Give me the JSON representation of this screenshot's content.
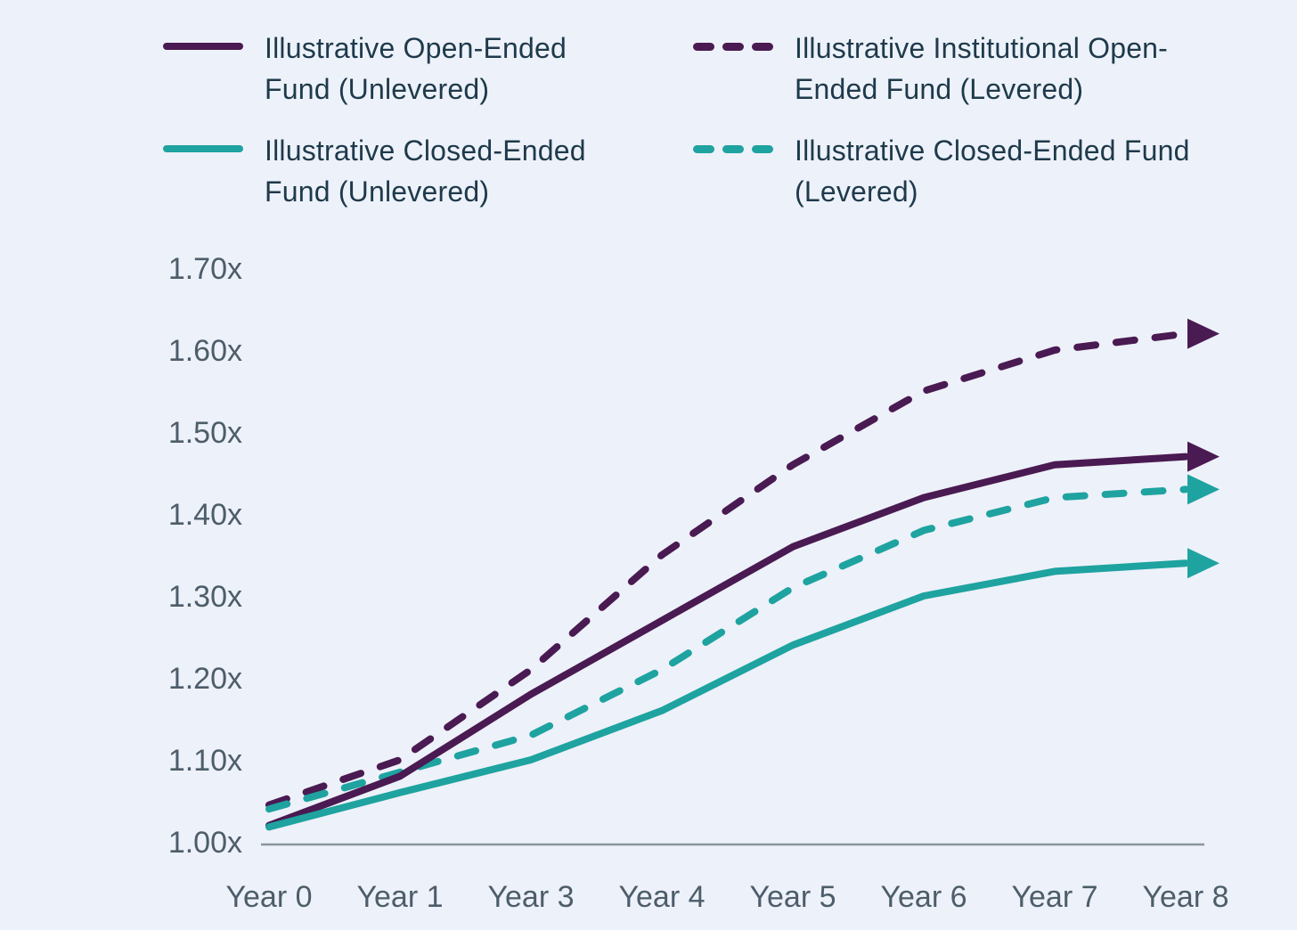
{
  "page": {
    "background_color": "#EDF1F9",
    "text_color": "#1E3A4B",
    "axis_text_color": "#4D5D6A",
    "axis_line_color": "#8B959F"
  },
  "legend": {
    "items": [
      {
        "label": "Illustrative Open-Ended Fund (Unlevered)",
        "color": "#4A1A52",
        "style": "solid"
      },
      {
        "label": "Illustrative Institutional Open-Ended Fund (Levered)",
        "color": "#4A1A52",
        "style": "dashed"
      },
      {
        "label": "Illustrative Closed-Ended Fund (Unlevered)",
        "color": "#1EA3A0",
        "style": "solid"
      },
      {
        "label": "Illustrative Closed-Ended Fund (Levered)",
        "color": "#1EA3A0",
        "style": "dashed"
      }
    ]
  },
  "chart_data": {
    "type": "line",
    "title": "",
    "xlabel": "",
    "ylabel": "",
    "x_labels": [
      "Year 0",
      "Year 1",
      "Year 3",
      "Year 4",
      "Year 5",
      "Year 6",
      "Year 7",
      "Year 8"
    ],
    "y_ticks": [
      "1.00x",
      "1.10x",
      "1.20x",
      "1.30x",
      "1.40x",
      "1.50x",
      "1.60x",
      "1.70x"
    ],
    "ylim": [
      1.0,
      1.7
    ],
    "grid": false,
    "legend_position": "top",
    "arrow_end": true,
    "series": [
      {
        "name": "Illustrative Institutional Open-Ended Fund (Levered)",
        "style": "dashed",
        "color": "#4A1A52",
        "values": [
          1.045,
          1.1,
          1.21,
          1.35,
          1.46,
          1.55,
          1.6,
          1.62
        ]
      },
      {
        "name": "Illustrative Closed-Ended Fund (Levered)",
        "style": "dashed",
        "color": "#1EA3A0",
        "values": [
          1.04,
          1.085,
          1.13,
          1.21,
          1.31,
          1.38,
          1.42,
          1.43
        ]
      },
      {
        "name": "Illustrative Open-Ended Fund (Unlevered)",
        "style": "solid",
        "color": "#4A1A52",
        "values": [
          1.02,
          1.08,
          1.18,
          1.27,
          1.36,
          1.42,
          1.46,
          1.47
        ]
      },
      {
        "name": "Illustrative Closed-Ended Fund (Unlevered)",
        "style": "solid",
        "color": "#1EA3A0",
        "values": [
          1.018,
          1.06,
          1.1,
          1.16,
          1.24,
          1.3,
          1.33,
          1.34
        ]
      }
    ]
  }
}
